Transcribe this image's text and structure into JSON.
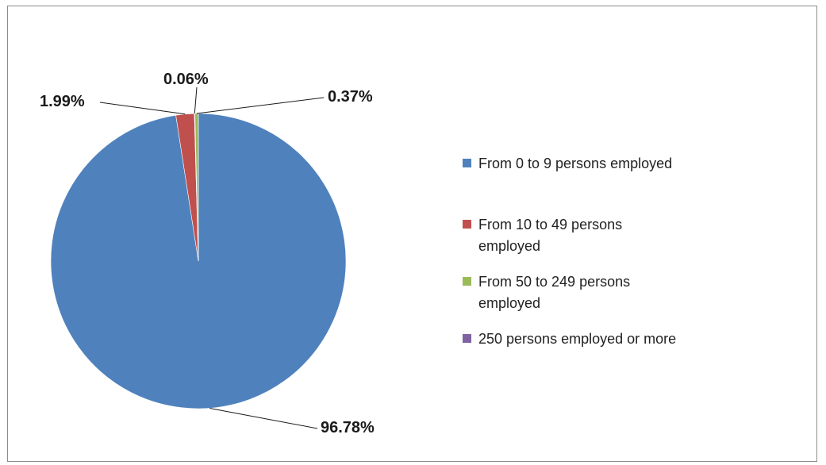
{
  "chart_data": {
    "type": "pie",
    "title": "",
    "categories": [
      "From 0 to 9 persons employed",
      "From 10 to 49 persons employed",
      "From 50 to 249 persons employed",
      "250 persons employed or more"
    ],
    "values": [
      96.78,
      1.99,
      0.37,
      0.06
    ],
    "data_labels": [
      "96.78%",
      "1.99%",
      "0.37%",
      "0.06%"
    ],
    "colors": [
      "#4f81bd",
      "#c0504d",
      "#9bbb59",
      "#8064a2"
    ],
    "legend": {
      "placement": "right",
      "entries": [
        [
          "From 0 to 9 persons employed"
        ],
        [
          "From 10 to 49 persons",
          "employed"
        ],
        [
          "From 50 to 249 persons",
          "employed"
        ],
        [
          "250 persons employed or more"
        ]
      ]
    }
  }
}
